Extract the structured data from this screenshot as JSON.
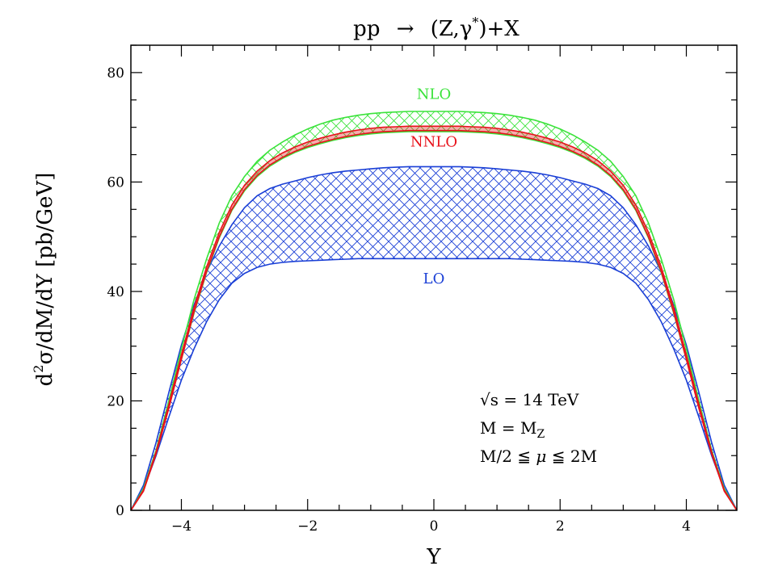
{
  "chart_data": {
    "type": "area",
    "title_parts": {
      "pre": "pp",
      "arrow": "→",
      "mid": "(Z,γ",
      "sup": "*",
      "post": ")+X"
    },
    "xlabel": "Y",
    "ylabel_parts": {
      "d": "d",
      "sup": "2",
      "rest": "σ/dM/dY [pb/GeV]"
    },
    "xlim": [
      -4.8,
      4.8
    ],
    "ylim": [
      0,
      85
    ],
    "x_ticks": [
      -4,
      -2,
      0,
      2,
      4
    ],
    "x_tick_labels": [
      "−4",
      "−2",
      "0",
      "2",
      "4"
    ],
    "y_ticks": [
      0,
      20,
      40,
      60,
      80
    ],
    "y_tick_labels": [
      "0",
      "20",
      "40",
      "60",
      "80"
    ],
    "x": [
      -4.8,
      -4.6,
      -4.4,
      -4.2,
      -4.0,
      -3.8,
      -3.6,
      -3.4,
      -3.2,
      -3.0,
      -2.8,
      -2.6,
      -2.4,
      -2.2,
      -2.0,
      -1.8,
      -1.6,
      -1.4,
      -1.2,
      -1.0,
      -0.8,
      -0.6,
      -0.4,
      -0.2,
      0.0,
      0.2,
      0.4,
      0.6,
      0.8,
      1.0,
      1.2,
      1.4,
      1.6,
      1.8,
      2.0,
      2.2,
      2.4,
      2.6,
      2.8,
      3.0,
      3.2,
      3.4,
      3.6,
      3.8,
      4.0,
      4.2,
      4.4,
      4.6,
      4.8
    ],
    "series": [
      {
        "name": "LO",
        "color": "#1a3fd6",
        "band": true,
        "upper": [
          0.0,
          4.6,
          12.4,
          21.5,
          30.2,
          37.5,
          43.6,
          48.3,
          52.2,
          55.3,
          57.5,
          58.8,
          59.6,
          60.2,
          60.8,
          61.3,
          61.7,
          62.0,
          62.2,
          62.4,
          62.6,
          62.7,
          62.8,
          62.8,
          62.8,
          62.8,
          62.8,
          62.7,
          62.6,
          62.4,
          62.2,
          62.0,
          61.7,
          61.3,
          60.8,
          60.2,
          59.6,
          58.8,
          57.5,
          55.3,
          52.2,
          48.3,
          43.6,
          37.5,
          30.2,
          21.5,
          12.4,
          4.6,
          0.0
        ],
        "lower": [
          0.0,
          3.8,
          10.0,
          17.0,
          23.8,
          29.5,
          34.5,
          38.5,
          41.5,
          43.3,
          44.4,
          45.0,
          45.3,
          45.5,
          45.6,
          45.7,
          45.8,
          45.9,
          46.0,
          46.0,
          46.0,
          46.0,
          46.0,
          46.0,
          46.0,
          46.0,
          46.0,
          46.0,
          46.0,
          46.0,
          46.0,
          45.9,
          45.8,
          45.7,
          45.6,
          45.5,
          45.3,
          45.0,
          44.4,
          43.3,
          41.5,
          38.5,
          34.5,
          29.5,
          23.8,
          17.0,
          10.0,
          3.8,
          0.0
        ]
      },
      {
        "name": "NLO",
        "color": "#3be33b",
        "band": true,
        "upper": [
          0.0,
          4.0,
          11.0,
          20.0,
          29.5,
          38.5,
          46.0,
          52.5,
          57.5,
          61.0,
          63.8,
          65.8,
          67.3,
          68.6,
          69.7,
          70.6,
          71.3,
          71.8,
          72.2,
          72.5,
          72.7,
          72.8,
          72.9,
          72.9,
          72.9,
          72.9,
          72.9,
          72.8,
          72.7,
          72.5,
          72.2,
          71.8,
          71.3,
          70.6,
          69.7,
          68.6,
          67.3,
          65.8,
          63.8,
          61.0,
          57.5,
          52.5,
          46.0,
          38.5,
          29.5,
          20.0,
          11.0,
          4.0,
          0.0
        ],
        "lower": [
          0.0,
          3.6,
          10.4,
          18.8,
          27.6,
          36.0,
          43.5,
          49.8,
          54.8,
          58.4,
          61.0,
          62.9,
          64.3,
          65.4,
          66.3,
          67.0,
          67.6,
          68.1,
          68.5,
          68.8,
          69.0,
          69.1,
          69.2,
          69.2,
          69.2,
          69.2,
          69.2,
          69.1,
          69.0,
          68.8,
          68.5,
          68.1,
          67.6,
          67.0,
          66.3,
          65.4,
          64.3,
          62.9,
          61.0,
          58.4,
          54.8,
          49.8,
          43.5,
          36.0,
          27.6,
          18.8,
          10.4,
          3.6,
          0.0
        ]
      },
      {
        "name": "NNLO",
        "color": "#e8121b",
        "band": true,
        "upper": [
          0.0,
          3.7,
          10.7,
          19.3,
          28.4,
          37.0,
          44.5,
          50.8,
          55.8,
          59.4,
          62.0,
          63.9,
          65.3,
          66.4,
          67.3,
          68.0,
          68.6,
          69.1,
          69.5,
          69.8,
          70.0,
          70.1,
          70.2,
          70.2,
          70.2,
          70.2,
          70.2,
          70.1,
          70.0,
          69.8,
          69.5,
          69.1,
          68.6,
          68.0,
          67.3,
          66.4,
          65.3,
          63.9,
          62.0,
          59.4,
          55.8,
          50.8,
          44.5,
          37.0,
          28.4,
          19.3,
          10.7,
          3.7,
          0.0
        ],
        "lower": [
          0.0,
          3.5,
          10.3,
          18.6,
          27.6,
          36.2,
          43.7,
          50.0,
          55.0,
          58.6,
          61.2,
          63.1,
          64.5,
          65.6,
          66.5,
          67.2,
          67.8,
          68.3,
          68.7,
          69.0,
          69.2,
          69.3,
          69.4,
          69.4,
          69.4,
          69.4,
          69.4,
          69.3,
          69.2,
          69.0,
          68.7,
          68.3,
          67.8,
          67.2,
          66.5,
          65.6,
          64.5,
          63.1,
          61.2,
          58.6,
          55.0,
          50.0,
          43.7,
          36.2,
          27.6,
          18.6,
          10.3,
          3.5,
          0.0
        ]
      }
    ],
    "series_labels": [
      {
        "text": "NLO",
        "color": "#3be33b",
        "x": 0.0,
        "y": 75.2
      },
      {
        "text": "NNLO",
        "color": "#e8121b",
        "x": 0.0,
        "y": 66.5
      },
      {
        "text": "LO",
        "color": "#1a3fd6",
        "x": 0.0,
        "y": 41.5
      }
    ],
    "annotations": {
      "line1": {
        "sqrt": "√",
        "rest": "s  =  14  TeV"
      },
      "line2": {
        "main": "M  =  M",
        "sub": "Z"
      },
      "line3": {
        "a": "M/2  ≦  ",
        "mu": "μ",
        "b": "  ≦  2M"
      }
    },
    "grid": false,
    "legend": "none"
  }
}
